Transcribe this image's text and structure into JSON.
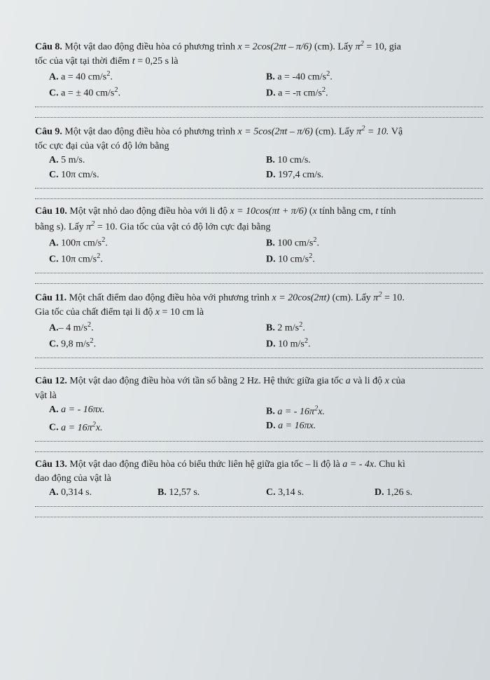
{
  "background_color": "#dde2e4",
  "text_color": "#1a1a1a",
  "font_family": "Times New Roman",
  "base_fontsize": 14,
  "questions": [
    {
      "label": "Câu 8.",
      "body1": "Một vật dao động điều hòa có phương trình ",
      "eq1_lhs": "x",
      "eq1_rhs": "2cos(2πt – π/6)",
      "body2": " (cm). Lấy ",
      "pi_sq": "π",
      "pi_sq_exp": "2",
      "eq2_rhs": " = 10, gia",
      "body3": "tốc của vật tại thời điểm ",
      "eq3": "t",
      "eq3_rhs": " = 0,25 s là",
      "opts": {
        "A": "a = 40 cm/s",
        "B": "a = -40 cm/s",
        "C": "a = ± 40 cm/s",
        "D": "a = -π cm/s"
      },
      "sup": "2",
      "dot": "."
    },
    {
      "label": "Câu 9.",
      "body1": " Một vật dao động điều hòa có phương trình ",
      "eq1": "x = 5cos(2πt – π/6)",
      "body2": " (cm). Lấy ",
      "pi_sq": "π",
      "pi_sq_exp": "2",
      "eq2": " = 10.",
      "body3": " Vậ",
      "body4": "tốc cực đại của vật có độ lớn bằng",
      "opts": {
        "A": "5 m/s.",
        "B": "10 cm/s.",
        "C": "10π cm/s.",
        "D": "197,4 cm/s."
      }
    },
    {
      "label": "Câu 10.",
      "body1": " Một vật nhỏ dao động điều hòa với li độ ",
      "eq1": "x = 10cos(πt + π/6)",
      "body2": " (",
      "var_x": "x",
      "body3": " tính bằng cm, ",
      "var_t": "t",
      "body4": " tính",
      "body5": "bằng s). Lấy ",
      "pi_sq": "π",
      "pi_sq_exp": "2",
      "eq2": " = 10. Gia tốc của vật có độ lớn cực đại bằng",
      "opts": {
        "A": "100π cm/s",
        "B": "100 cm/s",
        "C": "10π cm/s",
        "D": "10 cm/s"
      },
      "sup": "2",
      "dot": "."
    },
    {
      "label": "Câu 11.",
      "body1": " Một chất điểm dao động điều hòa với phương trình ",
      "eq1": "x = 20cos(2πt)",
      "body2": " (cm). Lấy ",
      "pi_sq": "π",
      "pi_sq_exp": "2",
      "eq2": " = 10.",
      "body3": "Gia tốc của chất điểm tại li độ ",
      "eq3": "x",
      "eq3_rhs": " = 10 cm là",
      "opts": {
        "A_pre": "– 4 m/s",
        "B": "2 m/s",
        "C": "9,8 m/s",
        "D": "10 m/s"
      },
      "sup": "2",
      "dot": "."
    },
    {
      "label": "Câu 12.",
      "body1": " Một vật dao động điều hòa với tần số bằng 2 Hz. Hệ thức giữa gia tốc ",
      "var_a": "a",
      "body2": " và li độ ",
      "var_x": "x",
      "body3": " của",
      "body4": "vật là",
      "opts": {
        "A": "a = - 16πx.",
        "B_pre": "a = - 16π",
        "B_sup": "2",
        "B_post": "x.",
        "C_pre": "a = 16π",
        "C_sup": "2",
        "C_post": "x.",
        "D": "a = 16πx."
      }
    },
    {
      "label": "Câu 13.",
      "body1": " Một vật dao động điều hòa có biểu thức liên hệ giữa gia tốc – li độ là ",
      "eq1": "a = - 4x",
      "body2": ". Chu kì",
      "body3": "dao động của vật là",
      "opts": {
        "A": "0,314 s.",
        "B": "12,57 s.",
        "C": "3,14 s.",
        "D": "1,26 s."
      }
    }
  ]
}
